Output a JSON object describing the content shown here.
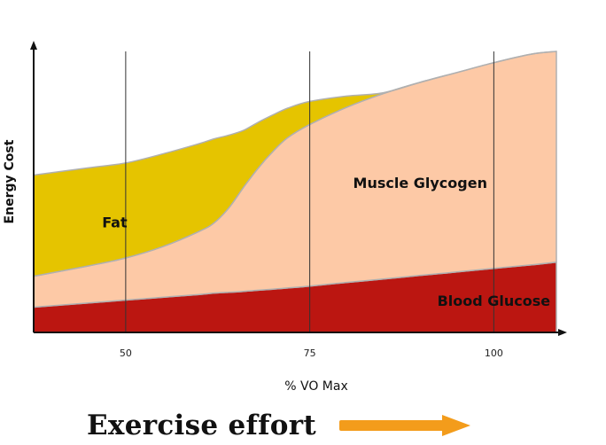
{
  "chart_data": {
    "type": "area",
    "stacked": true,
    "xlabel": "% VO Max",
    "ylabel": "Energy Cost",
    "xlim": [
      37.5,
      108.5
    ],
    "ylim": [
      0,
      100
    ],
    "x_ticks": [
      50,
      75,
      100
    ],
    "grid": "vertical lines at x ticks",
    "x": [
      37.5,
      45,
      50,
      55,
      60,
      62,
      64,
      66,
      68,
      70,
      72,
      75,
      80,
      85,
      90,
      95,
      100,
      105,
      108.5
    ],
    "series": [
      {
        "name": "Blood Glucose",
        "color": "#bb1611",
        "values": [
          9,
          10.5,
          11.5,
          12.5,
          13.5,
          14,
          14.3,
          14.6,
          15,
          15.4,
          15.8,
          16.5,
          17.8,
          19,
          20.3,
          21.5,
          22.8,
          24,
          25
        ]
      },
      {
        "name": "Muscle Glycogen",
        "color": "#fdc9a6",
        "values": [
          11,
          13.2,
          15,
          18,
          22.5,
          25,
          30,
          37,
          43.5,
          49,
          53.5,
          57.5,
          62.3,
          66,
          68.7,
          71,
          73.2,
          75,
          75
        ]
      },
      {
        "name": "Fat",
        "color": "#e5c400",
        "values": [
          36,
          34.9,
          33.8,
          33,
          31.2,
          29.9,
          25.9,
          20.3,
          16.3,
          13,
          10.5,
          8.2,
          4,
          0.3,
          0,
          0,
          0,
          0,
          0
        ]
      }
    ]
  },
  "footer": {
    "text": "Exercise effort",
    "arrow_color": "#f39c1b"
  }
}
